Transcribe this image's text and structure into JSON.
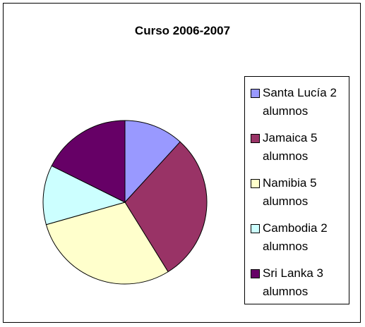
{
  "chart_data": {
    "type": "pie",
    "title": "Curso 2006-2007",
    "categories": [
      "Santa Lucía 2 alumnos",
      "Jamaica 5 alumnos",
      "Namibia 5 alumnos",
      "Cambodia 2 alumnos",
      "Sri Lanka 3 alumnos"
    ],
    "values": [
      2,
      5,
      5,
      2,
      3
    ],
    "colors": [
      "#9999ff",
      "#993366",
      "#ffffcc",
      "#ccffff",
      "#660066"
    ]
  }
}
